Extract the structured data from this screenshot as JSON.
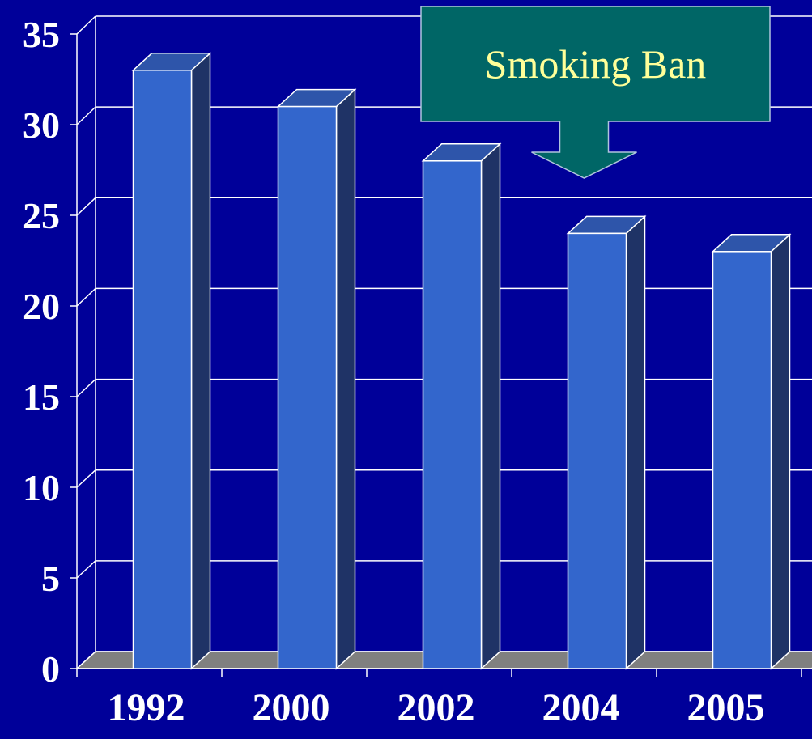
{
  "chart_data": {
    "type": "bar",
    "style": "3d",
    "categories": [
      "1992",
      "2000",
      "2002",
      "2004",
      "2005"
    ],
    "values": [
      33,
      31,
      28,
      24,
      23
    ],
    "ylim": [
      0,
      35
    ],
    "yticks": [
      0,
      5,
      10,
      15,
      20,
      25,
      30,
      35
    ],
    "grid": true,
    "legend": "none",
    "annotation": {
      "text": "Smoking Ban",
      "points_to": "2004",
      "fill": "#006666",
      "text_color": "#ffff99"
    },
    "colors": {
      "background": "#000099",
      "bar_front": "#3366cc",
      "bar_side": "#1f3366",
      "bar_top": "#2e55aa",
      "floor": "#808080",
      "grid": "#ffffff",
      "text": "#ffffff"
    }
  }
}
